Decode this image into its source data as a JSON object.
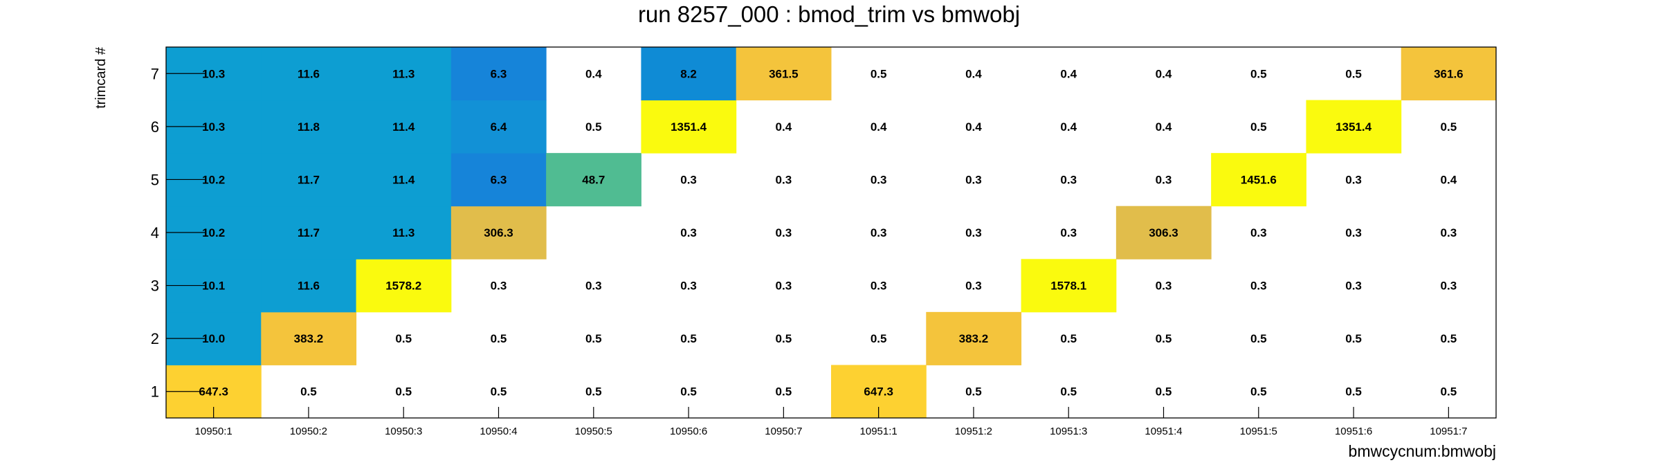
{
  "chart_data": {
    "type": "heatmap",
    "title": "run 8257_000 : bmod_trim vs bmwobj",
    "xlabel": "bmwcycnum:bmwobj",
    "ylabel": "trimcard #",
    "x_categories": [
      "10950:1",
      "10950:2",
      "10950:3",
      "10950:4",
      "10950:5",
      "10950:6",
      "10950:7",
      "10951:1",
      "10951:2",
      "10951:3",
      "10951:4",
      "10951:5",
      "10951:6",
      "10951:7"
    ],
    "y_categories": [
      "1",
      "2",
      "3",
      "4",
      "5",
      "6",
      "7"
    ],
    "values": [
      [
        647.3,
        0.5,
        0.5,
        0.5,
        0.5,
        0.5,
        0.5,
        647.3,
        0.5,
        0.5,
        0.5,
        0.5,
        0.5,
        0.5
      ],
      [
        10.0,
        383.2,
        0.5,
        0.5,
        0.5,
        0.5,
        0.5,
        0.5,
        383.2,
        0.5,
        0.5,
        0.5,
        0.5,
        0.5
      ],
      [
        10.1,
        11.6,
        1578.2,
        0.3,
        0.3,
        0.3,
        0.3,
        0.3,
        0.3,
        1578.1,
        0.3,
        0.3,
        0.3,
        0.3
      ],
      [
        10.2,
        11.7,
        11.3,
        306.3,
        null,
        0.3,
        0.3,
        0.3,
        0.3,
        0.3,
        306.3,
        0.3,
        0.3,
        0.3
      ],
      [
        10.2,
        11.7,
        11.4,
        6.3,
        48.7,
        0.3,
        0.3,
        0.3,
        0.3,
        0.3,
        0.3,
        1451.6,
        0.3,
        0.4
      ],
      [
        10.3,
        11.8,
        11.4,
        6.4,
        0.5,
        1351.4,
        0.4,
        0.4,
        0.4,
        0.4,
        0.4,
        0.5,
        1351.4,
        0.5
      ],
      [
        10.3,
        11.6,
        11.3,
        6.3,
        0.4,
        8.2,
        361.5,
        0.5,
        0.4,
        0.4,
        0.4,
        0.5,
        0.5,
        361.6
      ]
    ],
    "cell_colors": [
      [
        "#fdd131",
        null,
        null,
        null,
        null,
        null,
        null,
        "#fdd131",
        null,
        null,
        null,
        null,
        null,
        null
      ],
      [
        "#0d9ed2",
        "#f4c43c",
        null,
        null,
        null,
        null,
        null,
        null,
        "#f4c43c",
        null,
        null,
        null,
        null,
        null
      ],
      [
        "#0d9ed2",
        "#0d9ed2",
        "#fafa0e",
        null,
        null,
        null,
        null,
        null,
        null,
        "#fafa0e",
        null,
        null,
        null,
        null
      ],
      [
        "#0d9ed2",
        "#0d9ed2",
        "#0d9ed2",
        "#e1bd4b",
        null,
        null,
        null,
        null,
        null,
        null,
        "#e1bd4b",
        null,
        null,
        null
      ],
      [
        "#0d9ed2",
        "#0d9ed2",
        "#0d9ed2",
        "#1684d9",
        "#50bc92",
        null,
        null,
        null,
        null,
        null,
        null,
        "#fafa0e",
        null,
        null
      ],
      [
        "#0d9ed2",
        "#0d9ed2",
        "#0d9ed2",
        "#1291d6",
        null,
        "#fafa0e",
        null,
        null,
        null,
        null,
        null,
        null,
        "#fafa0e",
        null
      ],
      [
        "#0d9ed2",
        "#0d9ed2",
        "#0d9ed2",
        "#1684d9",
        null,
        "#0f8bd5",
        "#f4c43c",
        null,
        null,
        null,
        null,
        null,
        null,
        "#f4c43c"
      ]
    ],
    "grid": false,
    "legend": "none"
  }
}
